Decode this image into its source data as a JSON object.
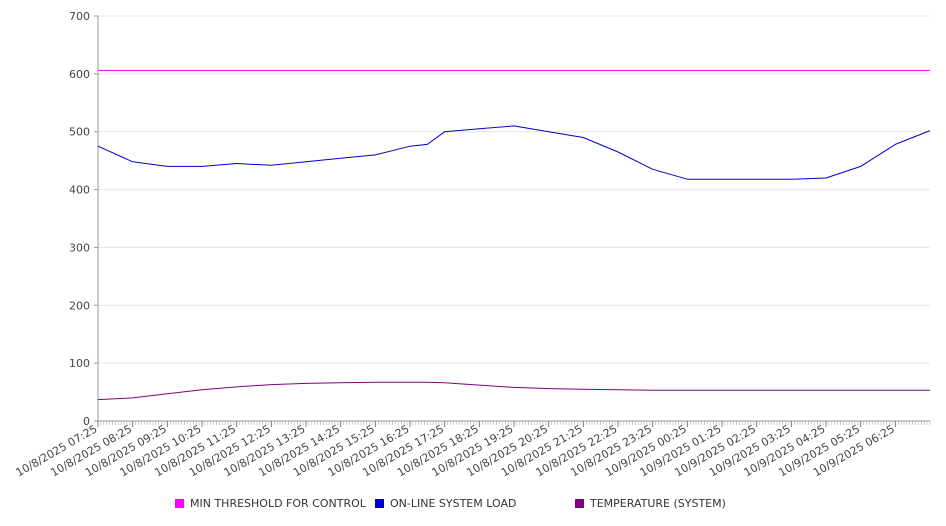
{
  "chart_data": {
    "type": "line",
    "title": "",
    "xlabel": "",
    "ylabel": "",
    "ylim": [
      0,
      700
    ],
    "y_ticks": [
      0,
      100,
      200,
      300,
      400,
      500,
      600,
      700
    ],
    "grid": "horizontal",
    "legend_position": "bottom",
    "x_tick_labels": [
      "10/8/2025 07:25",
      "10/8/2025 08:25",
      "10/8/2025 09:25",
      "10/8/2025 10:25",
      "10/8/2025 11:25",
      "10/8/2025 12:25",
      "10/8/2025 13:25",
      "10/8/2025 14:25",
      "10/8/2025 15:25",
      "10/8/2025 16:25",
      "10/8/2025 17:25",
      "10/8/2025 18:25",
      "10/8/2025 19:25",
      "10/8/2025 20:25",
      "10/8/2025 21:25",
      "10/8/2025 22:25",
      "10/8/2025 23:25",
      "10/9/2025 00:25",
      "10/9/2025 01:25",
      "10/9/2025 02:25",
      "10/9/2025 03:25",
      "10/9/2025 04:25",
      "10/9/2025 05:25",
      "10/9/2025 06:25"
    ],
    "x_range": [
      "10/8/2025 07:25",
      "10/9/2025 07:25"
    ],
    "x_time_points": [
      "10/8/2025 07:25",
      "10/8/2025 08:25",
      "10/8/2025 09:25",
      "10/8/2025 10:25",
      "10/8/2025 11:25",
      "10/8/2025 12:25",
      "10/8/2025 13:25",
      "10/8/2025 14:25",
      "10/8/2025 15:25",
      "10/8/2025 16:25",
      "10/8/2025 16:55",
      "10/8/2025 17:25",
      "10/8/2025 18:25",
      "10/8/2025 19:25",
      "10/8/2025 20:25",
      "10/8/2025 21:25",
      "10/8/2025 22:25",
      "10/8/2025 23:25",
      "10/9/2025 00:25",
      "10/9/2025 01:25",
      "10/9/2025 02:25",
      "10/9/2025 03:25",
      "10/9/2025 04:25",
      "10/9/2025 05:25",
      "10/9/2025 06:25",
      "10/9/2025 07:25"
    ],
    "series": [
      {
        "name": "MIN THRESHOLD FOR CONTROL",
        "color": "#ff00ff",
        "values": [
          606,
          606,
          606,
          606,
          606,
          606,
          606,
          606,
          606,
          606,
          606,
          606,
          606,
          606,
          606,
          606,
          606,
          606,
          606,
          606,
          606,
          606,
          606,
          606,
          606,
          606
        ]
      },
      {
        "name": "ON-LINE SYSTEM LOAD",
        "color": "#0000cc",
        "values": [
          475,
          448,
          440,
          440,
          445,
          442,
          448,
          454,
          460,
          475,
          478,
          500,
          505,
          510,
          500,
          490,
          465,
          435,
          418,
          418,
          418,
          418,
          420,
          440,
          478,
          502
        ]
      },
      {
        "name": "TEMPERATURE (SYSTEM)",
        "color": "#800080",
        "values": [
          37,
          40,
          47,
          54,
          59,
          63,
          65,
          66,
          67,
          67,
          67,
          66,
          62,
          58,
          56,
          55,
          54,
          53,
          53,
          53,
          53,
          53,
          53,
          53,
          53,
          53
        ]
      }
    ]
  }
}
